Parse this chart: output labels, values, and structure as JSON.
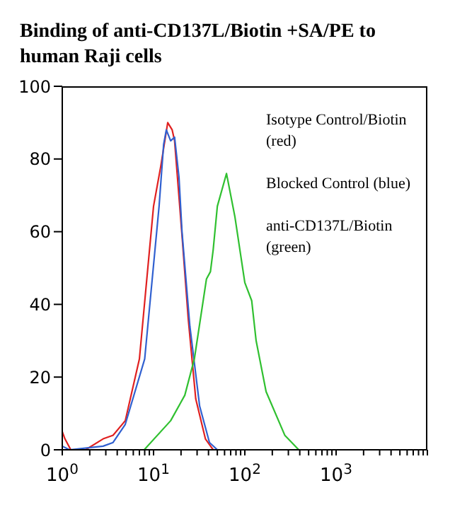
{
  "chart_data": {
    "type": "line",
    "title": "Binding of anti-CD137L/Biotin +SA/PE to human Raji cells",
    "log": "x",
    "xlim": [
      1,
      10000
    ],
    "xticks": [
      {
        "value": 1,
        "label": "10$^{0}$"
      },
      {
        "value": 2,
        "label": null
      },
      {
        "value": 3,
        "label": null
      },
      {
        "value": 4,
        "label": null
      },
      {
        "value": 5,
        "label": null
      },
      {
        "value": 6,
        "label": null
      },
      {
        "value": 7,
        "label": null
      },
      {
        "value": 8,
        "label": null
      },
      {
        "value": 9,
        "label": null
      },
      {
        "value": 10,
        "label": "10$^{1}$"
      },
      {
        "value": 20,
        "label": null
      },
      {
        "value": 30,
        "label": null
      },
      {
        "value": 40,
        "label": null
      },
      {
        "value": 50,
        "label": null
      },
      {
        "value": 60,
        "label": null
      },
      {
        "value": 70,
        "label": null
      },
      {
        "value": 80,
        "label": null
      },
      {
        "value": 90,
        "label": null
      },
      {
        "value": 100,
        "label": "10$^{2}$"
      },
      {
        "value": 200,
        "label": null
      },
      {
        "value": 300,
        "label": null
      },
      {
        "value": 400,
        "label": null
      },
      {
        "value": 500,
        "label": null
      },
      {
        "value": 600,
        "label": null
      },
      {
        "value": 700,
        "label": null
      },
      {
        "value": 800,
        "label": null
      },
      {
        "value": 900,
        "label": null
      },
      {
        "value": 1000,
        "label": "10$^{3}$"
      },
      {
        "value": 2000,
        "label": null
      },
      {
        "value": 3000,
        "label": null
      },
      {
        "value": 4000,
        "label": null
      },
      {
        "value": 5000,
        "label": null
      },
      {
        "value": 6000,
        "label": null
      },
      {
        "value": 7000,
        "label": null
      },
      {
        "value": 8000,
        "label": null
      },
      {
        "value": 9000,
        "label": null
      },
      {
        "value": 10000,
        "label": null
      }
    ],
    "ylim": [
      0,
      100
    ],
    "yticks": [
      0,
      20,
      40,
      60,
      80,
      100
    ],
    "grid": false,
    "legend": false,
    "marker": "none",
    "line_style": "solid",
    "annotations": [
      "Isotype Control/Biotin (red)",
      "Blocked Control (blue)",
      "anti-CD137L/Biotin (green)"
    ],
    "series": [
      {
        "color": "#e02020",
        "x": [
          1,
          1.07,
          1.24,
          1.8,
          2.8,
          3.6,
          4.9,
          7,
          10,
          12,
          14.3,
          16,
          17,
          20.5,
          24,
          29,
          37,
          45
        ],
        "values": [
          5,
          3,
          0,
          0,
          3,
          4,
          8,
          25,
          67,
          78,
          90,
          88,
          85,
          59,
          36,
          14,
          3,
          0
        ]
      },
      {
        "color": "#3060d0",
        "x": [
          1,
          1.2,
          2.8,
          3.6,
          4.9,
          8,
          11.5,
          12.9,
          13.8,
          15.4,
          17,
          19,
          20.5,
          25,
          32,
          41,
          50
        ],
        "values": [
          1,
          0,
          1,
          2,
          7,
          25,
          67,
          84,
          88,
          85,
          86,
          75,
          60,
          34,
          12,
          2,
          0
        ]
      },
      {
        "color": "#30c030",
        "x": [
          1,
          7.9,
          15.4,
          22,
          28,
          38,
          42,
          45,
          50,
          63,
          78,
          100,
          119,
          133,
          171,
          274,
          390,
          10000
        ],
        "values": [
          0,
          0,
          8,
          15,
          25,
          47,
          49,
          55,
          67,
          76,
          64,
          46,
          41,
          30,
          16,
          4,
          0,
          0
        ]
      }
    ]
  }
}
